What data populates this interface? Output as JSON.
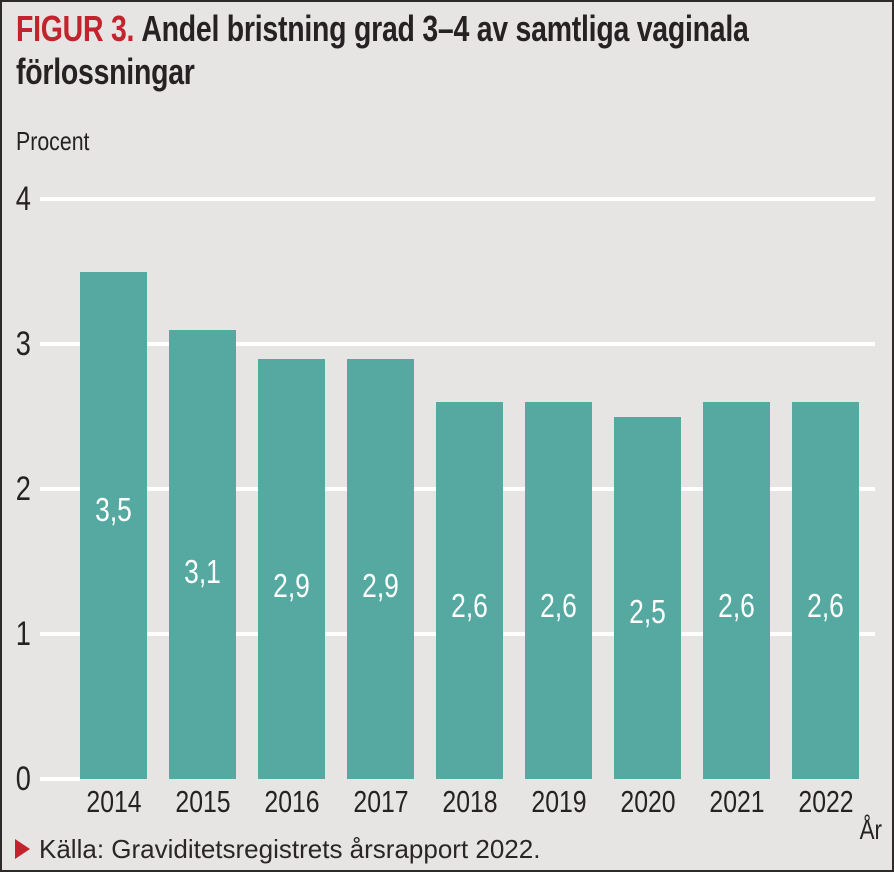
{
  "header": {
    "figure_label": "FIGUR 3.",
    "title_lines": [
      "Andel bristning grad 3–4 av samtliga vaginala",
      "förlossningar"
    ]
  },
  "chart_data": {
    "type": "bar",
    "title": "Andel bristning grad 3–4 av samtliga vaginala förlossningar",
    "ylabel": "Procent",
    "xlabel": "År",
    "categories": [
      "2014",
      "2015",
      "2016",
      "2017",
      "2018",
      "2019",
      "2020",
      "2021",
      "2022"
    ],
    "values": [
      3.5,
      3.1,
      2.9,
      2.9,
      2.6,
      2.6,
      2.5,
      2.6,
      2.6
    ],
    "value_labels": [
      "3,5",
      "3,1",
      "2,9",
      "2,9",
      "2,6",
      "2,6",
      "2,5",
      "2,6",
      "2,6"
    ],
    "yticks": [
      0,
      1,
      2,
      3,
      4
    ],
    "ylim": [
      0,
      4
    ],
    "grid": "horizontal-white-lines",
    "legend": "none",
    "value_labels_inside_bars": true
  },
  "source": {
    "marker": "right-pointing-triangle",
    "text": "Källa: Graviditetsregistrets årsrapport 2022."
  },
  "colors": {
    "background": "#e6e5e4",
    "bar": "#56a9a1",
    "accent_red": "#c2232c",
    "text": "#262223",
    "gridline": "#ffffff",
    "bar_value_text": "#ffffff"
  }
}
